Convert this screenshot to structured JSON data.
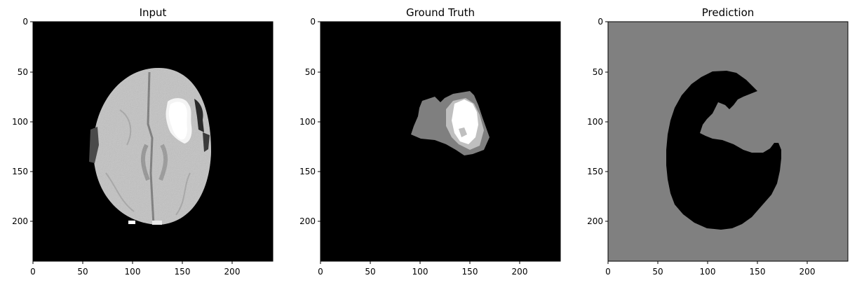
{
  "panels": [
    {
      "title": "Input",
      "x_ticks": [
        "0",
        "50",
        "100",
        "150",
        "200"
      ],
      "y_ticks": [
        "0",
        "50",
        "100",
        "150",
        "200"
      ],
      "background": "#000000"
    },
    {
      "title": "Ground Truth",
      "x_ticks": [
        "0",
        "50",
        "100",
        "150",
        "200"
      ],
      "y_ticks": [
        "0",
        "50",
        "100",
        "150",
        "200"
      ],
      "background": "#000000"
    },
    {
      "title": "Prediction",
      "x_ticks": [
        "0",
        "50",
        "100",
        "150",
        "200"
      ],
      "y_ticks": [
        "0",
        "50",
        "100",
        "150",
        "200"
      ],
      "background": "#808080"
    }
  ],
  "axis_range": [
    0,
    240
  ],
  "colors": {
    "brain_tissue": "#b8b8b8",
    "lesion_bright": "#ffffff",
    "gt_edema": "#7f7f7f",
    "gt_core": "#bfbfbf",
    "pred_background": "#808080",
    "pred_region": "#000000"
  }
}
